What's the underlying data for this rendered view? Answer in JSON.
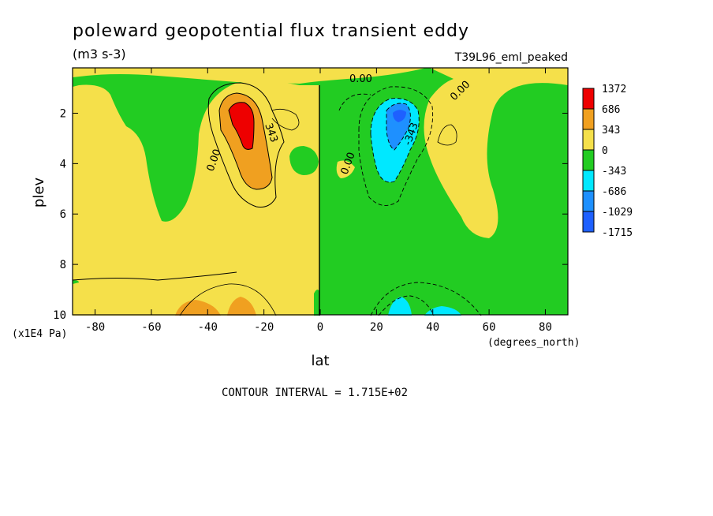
{
  "chart_data": {
    "type": "heatmap",
    "title": "poleward geopotential flux transient eddy",
    "units": "(m3 s-3)",
    "run_label": "T39L96_eml_peaked",
    "xlabel": "lat",
    "xunits": "(degrees_north)",
    "ylabel": "plev",
    "yunits": "(x1E4 Pa)",
    "xlim": [
      -88,
      88
    ],
    "ylim": [
      10,
      0.2
    ],
    "x_ticks": [
      -80,
      -60,
      -40,
      -20,
      0,
      20,
      40,
      60,
      80
    ],
    "y_ticks": [
      2,
      4,
      6,
      8,
      10
    ],
    "contour_interval_text": "CONTOUR INTERVAL = 1.715E+02",
    "contour_labels": [
      "0.00",
      "0.00",
      "0.00",
      "0.00",
      "343",
      "-343"
    ],
    "legend": {
      "placement": "right",
      "levels": [
        "1372",
        "686",
        "343",
        "0",
        "-343",
        "-686",
        "-1029",
        "-1715"
      ],
      "colors": [
        "#ee0000",
        "#f0a020",
        "#f5e04a",
        "#22cc22",
        "#00e8ff",
        "#1e90ff",
        "#1e60ff"
      ]
    },
    "colors": {
      "negative_low": "#22cc22",
      "positive_low": "#f5e04a",
      "positive_mid": "#f0a020",
      "positive_high": "#ee0000",
      "negative_mid": "#00e8ff",
      "negative_high": "#1e90ff"
    }
  }
}
